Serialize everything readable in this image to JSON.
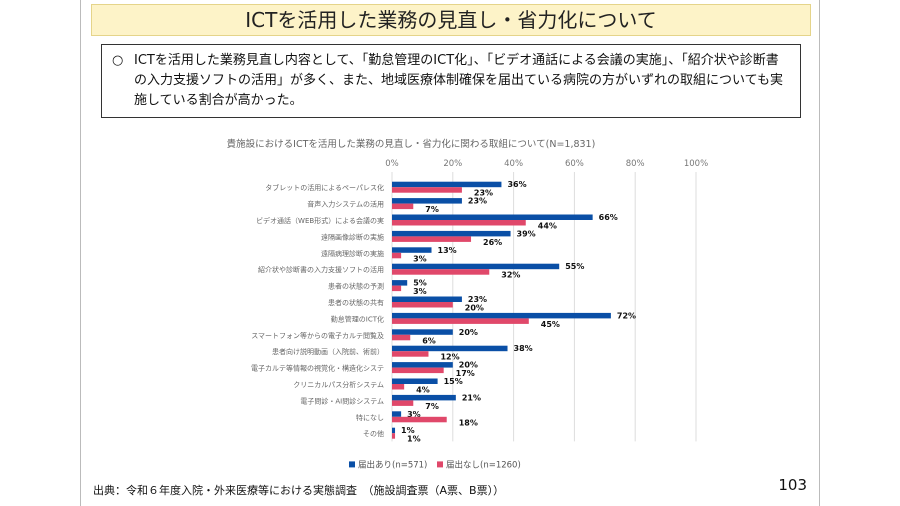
{
  "title": "ICTを活用した業務の見直し・省力化について",
  "summary": {
    "bullet": "○",
    "text": "ICTを活用した業務見直し内容として、「勤怠管理のICT化」、「ビデオ通話による会議の実施」、「紹介状や診断書の入力支援ソフトの活用」が多く、また、地域医療体制確保を届出ている病院の方がいずれの取組についても実施している割合が高かった。"
  },
  "source": "出典：令和６年度入院・外来医療等における実態調査　（施設調査票（A票、B票））",
  "page_number": "103",
  "chart_data": {
    "type": "bar",
    "orientation": "horizontal",
    "title": "貴施設におけるICTを活用した業務の見直し・省力化に関わる取組について(N=1,831)",
    "xlim": [
      0,
      100
    ],
    "xticks": [
      "0%",
      "20%",
      "40%",
      "60%",
      "80%",
      "100%"
    ],
    "categories": [
      "タブレットの活用によるペーパレス化",
      "音声入力システムの活用",
      "ビデオ通話（WEB形式）による会議の実",
      "遠隔画像診断の実施",
      "遠隔病理診断の実施",
      "紹介状や診断書の入力支援ソフトの活用",
      "患者の状態の予測",
      "患者の状態の共有",
      "勤怠管理のICT化",
      "スマートフォン等からの電子カルテ閲覧及",
      "患者向け説明動画（入院前、術前）",
      "電子カルテ等情報の視覚化・構造化システ",
      "クリニカルパス分析システム",
      "電子問診・AI問診システム",
      "特になし",
      "その他"
    ],
    "series": [
      {
        "name": "届出あり(n=571)",
        "color": "#0a4fa6",
        "values": [
          36,
          23,
          66,
          39,
          13,
          55,
          5,
          23,
          72,
          20,
          38,
          20,
          15,
          21,
          3,
          1
        ]
      },
      {
        "name": "届出なし(n=1260)",
        "color": "#e0486a",
        "values": [
          23,
          7,
          44,
          26,
          3,
          32,
          3,
          20,
          45,
          6,
          12,
          17,
          4,
          7,
          18,
          1
        ]
      }
    ],
    "legend": "bottom"
  }
}
